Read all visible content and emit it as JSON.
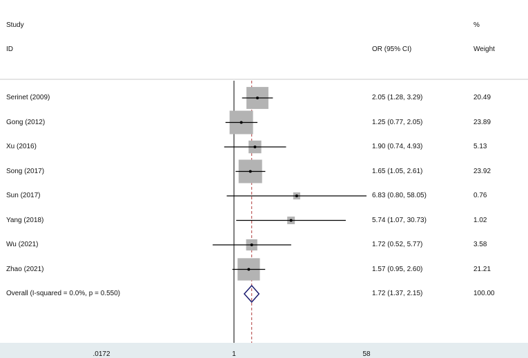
{
  "chart_data": {
    "type": "forest",
    "header": {
      "col1_line1": "Study",
      "col1_line2": "ID",
      "col2_line2": "OR (95% CI)",
      "col3_line1": "%",
      "col3_line2": "Weight"
    },
    "studies": [
      {
        "label": "Serinet (2009)",
        "or": 2.05,
        "lo": 1.28,
        "hi": 3.29,
        "ci_text": "2.05 (1.28, 3.29)",
        "weight": 20.49,
        "weight_text": "20.49"
      },
      {
        "label": "Gong (2012)",
        "or": 1.25,
        "lo": 0.77,
        "hi": 2.05,
        "ci_text": "1.25 (0.77, 2.05)",
        "weight": 23.89,
        "weight_text": "23.89"
      },
      {
        "label": "Xu  (2016)",
        "or": 1.9,
        "lo": 0.74,
        "hi": 4.93,
        "ci_text": "1.90 (0.74, 4.93)",
        "weight": 5.13,
        "weight_text": "5.13"
      },
      {
        "label": "Song  (2017)",
        "or": 1.65,
        "lo": 1.05,
        "hi": 2.61,
        "ci_text": "1.65 (1.05, 2.61)",
        "weight": 23.92,
        "weight_text": "23.92"
      },
      {
        "label": "Sun  (2017)",
        "or": 6.83,
        "lo": 0.8,
        "hi": 58.05,
        "ci_text": "6.83 (0.80, 58.05)",
        "weight": 0.76,
        "weight_text": "0.76"
      },
      {
        "label": "Yang  (2018)",
        "or": 5.74,
        "lo": 1.07,
        "hi": 30.73,
        "ci_text": "5.74 (1.07, 30.73)",
        "weight": 1.02,
        "weight_text": "1.02"
      },
      {
        "label": "Wu (2021)",
        "or": 1.72,
        "lo": 0.52,
        "hi": 5.77,
        "ci_text": "1.72 (0.52, 5.77)",
        "weight": 3.58,
        "weight_text": "3.58"
      },
      {
        "label": "Zhao  (2021)",
        "or": 1.57,
        "lo": 0.95,
        "hi": 2.6,
        "ci_text": "1.57 (0.95, 2.60)",
        "weight": 21.21,
        "weight_text": "21.21"
      }
    ],
    "overall": {
      "label": "Overall  (I-squared = 0.0%, p = 0.550)",
      "or": 1.72,
      "lo": 1.37,
      "hi": 2.15,
      "ci_text": "1.72 (1.37, 2.15)",
      "weight_text": "100.00"
    },
    "x_scale": "log",
    "x_ticks": [
      {
        "value": 0.0172,
        "label": ".0172"
      },
      {
        "value": 1,
        "label": "1"
      },
      {
        "value": 58,
        "label": "58"
      }
    ],
    "null_line": 1,
    "colors": {
      "box": "#b3b3b3",
      "ci_line": "#000000",
      "overall_diamond": "#1a1a6e",
      "overall_line": "#b03a3a",
      "separator": "#c8c8c8",
      "footer": "#e4ecef"
    }
  }
}
